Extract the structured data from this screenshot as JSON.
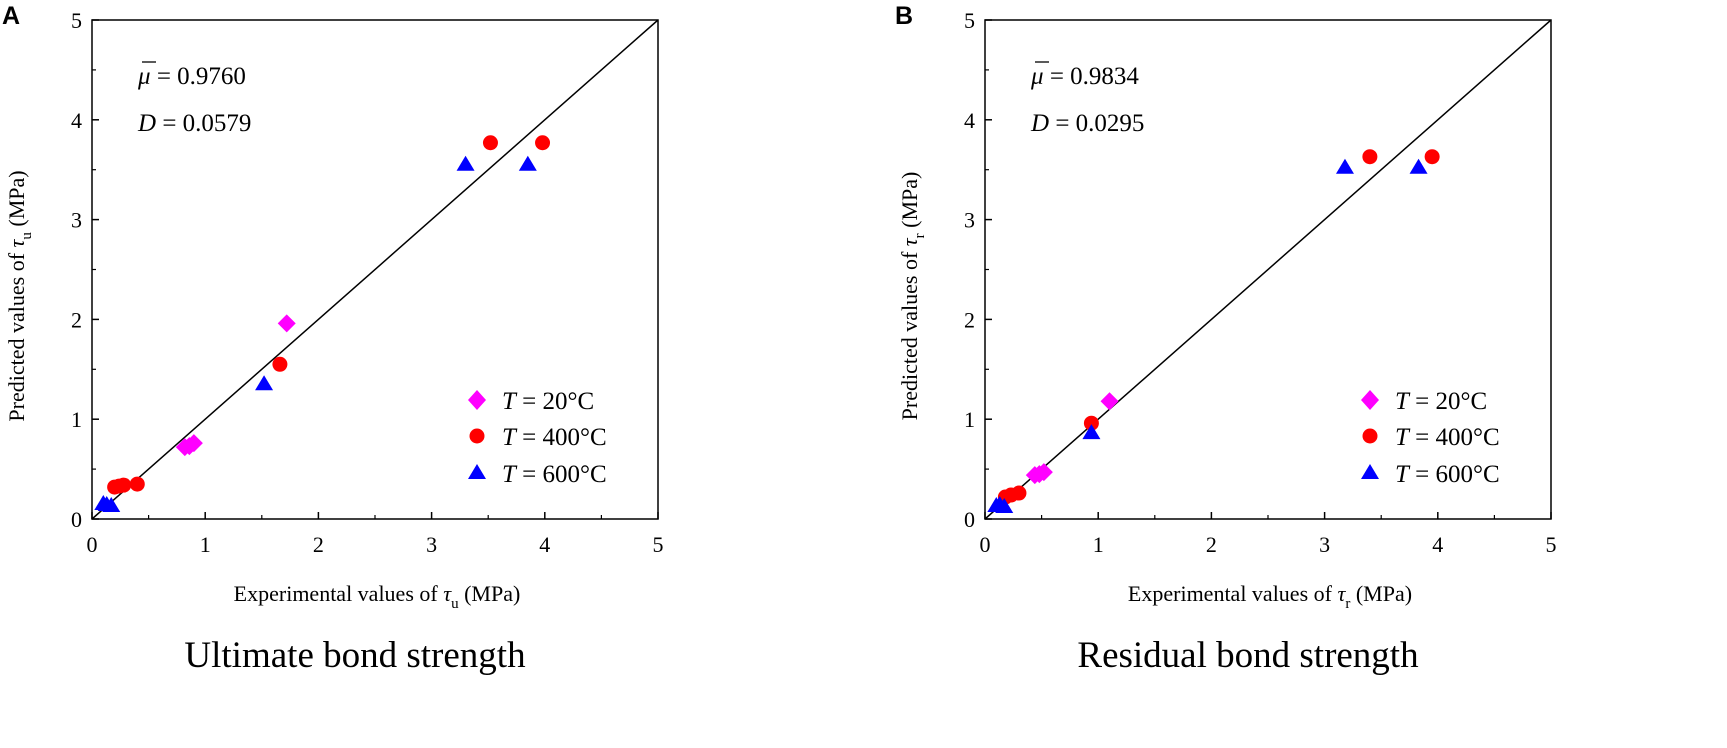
{
  "panels": [
    {
      "letter": "A",
      "caption": "Ultimate bond strength",
      "stats": {
        "mu_symbol": "μ",
        "mu_eq": " = 0.9760",
        "d_symbol": "D",
        "d_eq": " = 0.0579"
      },
      "xlabel": {
        "pre": "Experimental values of ",
        "sym": "τ",
        "sub": "u",
        "post": " (MPa)"
      },
      "ylabel": {
        "pre": "Predicted values of ",
        "sym": "τ",
        "sub": "u",
        "post": " (MPa)"
      },
      "legend": [
        {
          "sym": "T",
          "text": " = 20°C"
        },
        {
          "sym": "T",
          "text": " = 400°C"
        },
        {
          "sym": "T",
          "text": " = 600°C"
        }
      ]
    },
    {
      "letter": "B",
      "caption": "Residual bond strength",
      "stats": {
        "mu_symbol": "μ",
        "mu_eq": " = 0.9834",
        "d_symbol": "D",
        "d_eq": " = 0.0295"
      },
      "xlabel": {
        "pre": "Experimental values of ",
        "sym": "τ",
        "sub": "r",
        "post": " (MPa)"
      },
      "ylabel": {
        "pre": "Predicted values of ",
        "sym": "τ",
        "sub": "r",
        "post": " (MPa)"
      },
      "legend": [
        {
          "sym": "T",
          "text": " = 20°C"
        },
        {
          "sym": "T",
          "text": " = 400°C"
        },
        {
          "sym": "T",
          "text": " = 600°C"
        }
      ]
    }
  ],
  "chart_data": [
    {
      "type": "scatter",
      "title": "Ultimate bond strength",
      "xlabel": "Experimental values of τu (MPa)",
      "ylabel": "Predicted values of τu (MPa)",
      "xlim": [
        0,
        5
      ],
      "ylim": [
        0,
        5
      ],
      "xticks": [
        "0",
        "1",
        "2",
        "3",
        "4",
        "5"
      ],
      "yticks": [
        "0",
        "1",
        "2",
        "3",
        "4",
        "5"
      ],
      "reference_line": "y = x",
      "series": [
        {
          "name": "T = 20°C",
          "marker": "diamond",
          "color": "#ff00ff",
          "points": [
            [
              0.82,
              0.72
            ],
            [
              0.86,
              0.73
            ],
            [
              0.9,
              0.76
            ],
            [
              1.72,
              1.96
            ]
          ]
        },
        {
          "name": "T = 400°C",
          "marker": "circle",
          "color": "#ff0000",
          "points": [
            [
              0.2,
              0.32
            ],
            [
              0.24,
              0.33
            ],
            [
              0.28,
              0.34
            ],
            [
              0.4,
              0.35
            ],
            [
              1.66,
              1.55
            ],
            [
              3.52,
              3.77
            ],
            [
              3.98,
              3.77
            ]
          ]
        },
        {
          "name": "T = 600°C",
          "marker": "triangle",
          "color": "#0000ff",
          "points": [
            [
              0.1,
              0.15
            ],
            [
              0.13,
              0.14
            ],
            [
              0.17,
              0.13
            ],
            [
              1.52,
              1.35
            ],
            [
              3.3,
              3.55
            ],
            [
              3.85,
              3.55
            ]
          ]
        }
      ]
    },
    {
      "type": "scatter",
      "title": "Residual bond strength",
      "xlabel": "Experimental values of τr (MPa)",
      "ylabel": "Predicted values of τr (MPa)",
      "xlim": [
        0,
        5
      ],
      "ylim": [
        0,
        5
      ],
      "xticks": [
        "0",
        "1",
        "2",
        "3",
        "4",
        "5"
      ],
      "yticks": [
        "0",
        "1",
        "2",
        "3",
        "4",
        "5"
      ],
      "reference_line": "y = x",
      "series": [
        {
          "name": "T = 20°C",
          "marker": "diamond",
          "color": "#ff00ff",
          "points": [
            [
              0.44,
              0.44
            ],
            [
              0.48,
              0.45
            ],
            [
              0.52,
              0.47
            ],
            [
              1.1,
              1.18
            ]
          ]
        },
        {
          "name": "T = 400°C",
          "marker": "circle",
          "color": "#ff0000",
          "points": [
            [
              0.18,
              0.22
            ],
            [
              0.23,
              0.24
            ],
            [
              0.3,
              0.26
            ],
            [
              0.94,
              0.96
            ],
            [
              3.4,
              3.63
            ],
            [
              3.95,
              3.63
            ]
          ]
        },
        {
          "name": "T = 600°C",
          "marker": "triangle",
          "color": "#0000ff",
          "points": [
            [
              0.1,
              0.13
            ],
            [
              0.13,
              0.14
            ],
            [
              0.17,
              0.12
            ],
            [
              0.94,
              0.86
            ],
            [
              3.18,
              3.52
            ],
            [
              3.83,
              3.52
            ]
          ]
        }
      ]
    }
  ]
}
